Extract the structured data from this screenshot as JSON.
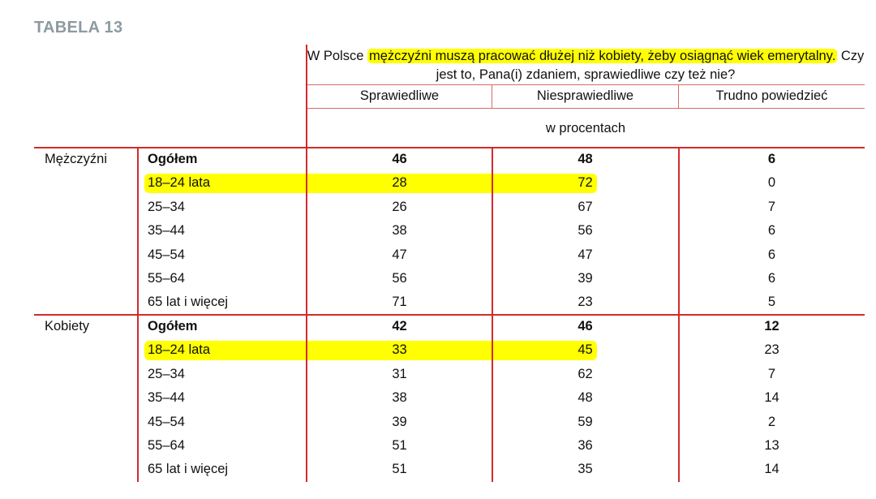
{
  "title": "TABELA 13",
  "question": {
    "prefix": "W Polsce ",
    "highlighted": "mężczyźni muszą pracować dłużej niż kobiety, żeby osiągnąć wiek emerytalny.",
    "suffix": " Czy jest to, Pana(i) zdaniem, sprawiedliwe czy też nie?"
  },
  "columns": [
    "Sprawiedliwe",
    "Niesprawiedliwe",
    "Trudno powiedzieć"
  ],
  "unit": "w procentach",
  "highlight_color": "#ffff00",
  "accent_color": "#d42a2a",
  "groups": [
    {
      "label": "Mężczyźni",
      "rows": [
        {
          "age": "Ogółem",
          "values": [
            "46",
            "48",
            "6"
          ],
          "bold": true,
          "highlight": false
        },
        {
          "age": "18–24 lata",
          "values": [
            "28",
            "72",
            "0"
          ],
          "bold": false,
          "highlight": true
        },
        {
          "age": "25–34",
          "values": [
            "26",
            "67",
            "7"
          ],
          "bold": false,
          "highlight": false
        },
        {
          "age": "35–44",
          "values": [
            "38",
            "56",
            "6"
          ],
          "bold": false,
          "highlight": false
        },
        {
          "age": "45–54",
          "values": [
            "47",
            "47",
            "6"
          ],
          "bold": false,
          "highlight": false
        },
        {
          "age": "55–64",
          "values": [
            "56",
            "39",
            "6"
          ],
          "bold": false,
          "highlight": false
        },
        {
          "age": "65 lat i więcej",
          "values": [
            "71",
            "23",
            "5"
          ],
          "bold": false,
          "highlight": false
        }
      ]
    },
    {
      "label": "Kobiety",
      "rows": [
        {
          "age": "Ogółem",
          "values": [
            "42",
            "46",
            "12"
          ],
          "bold": true,
          "highlight": false
        },
        {
          "age": "18–24 lata",
          "values": [
            "33",
            "45",
            "23"
          ],
          "bold": false,
          "highlight": true
        },
        {
          "age": "25–34",
          "values": [
            "31",
            "62",
            "7"
          ],
          "bold": false,
          "highlight": false
        },
        {
          "age": "35–44",
          "values": [
            "38",
            "48",
            "14"
          ],
          "bold": false,
          "highlight": false
        },
        {
          "age": "45–54",
          "values": [
            "39",
            "59",
            "2"
          ],
          "bold": false,
          "highlight": false
        },
        {
          "age": "55–64",
          "values": [
            "51",
            "36",
            "13"
          ],
          "bold": false,
          "highlight": false
        },
        {
          "age": "65 lat i więcej",
          "values": [
            "51",
            "35",
            "14"
          ],
          "bold": false,
          "highlight": false
        }
      ]
    }
  ]
}
